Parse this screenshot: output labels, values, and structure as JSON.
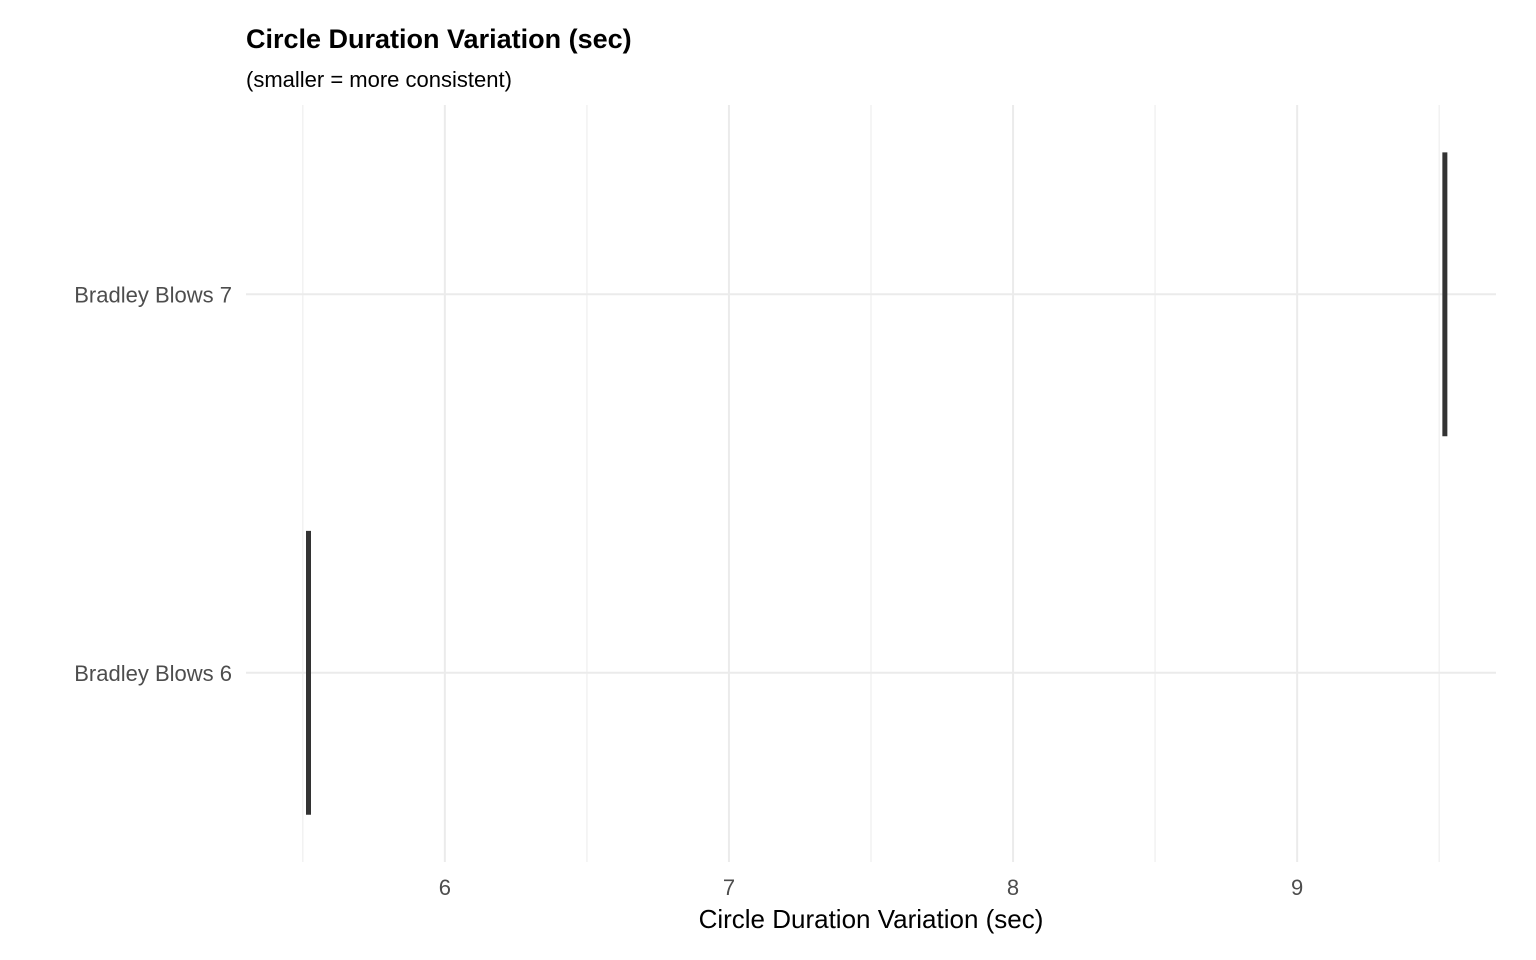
{
  "chart_data": {
    "type": "errorbar",
    "title": "Circle Duration Variation (sec)",
    "subtitle": "(smaller = more consistent)",
    "xlabel": "Circle Duration Variation (sec)",
    "ylabel": "",
    "categories": [
      "Bradley Blows 6",
      "Bradley Blows 7"
    ],
    "values": [
      5.52,
      9.52
    ],
    "xlim": [
      5.3,
      9.7
    ],
    "x_ticks": [
      6,
      7,
      8,
      9
    ],
    "x_minor_ticks": [
      5.5,
      6.5,
      7.5,
      8.5,
      9.5
    ],
    "grid": true,
    "legend": "none",
    "mark_color": "#333333"
  }
}
